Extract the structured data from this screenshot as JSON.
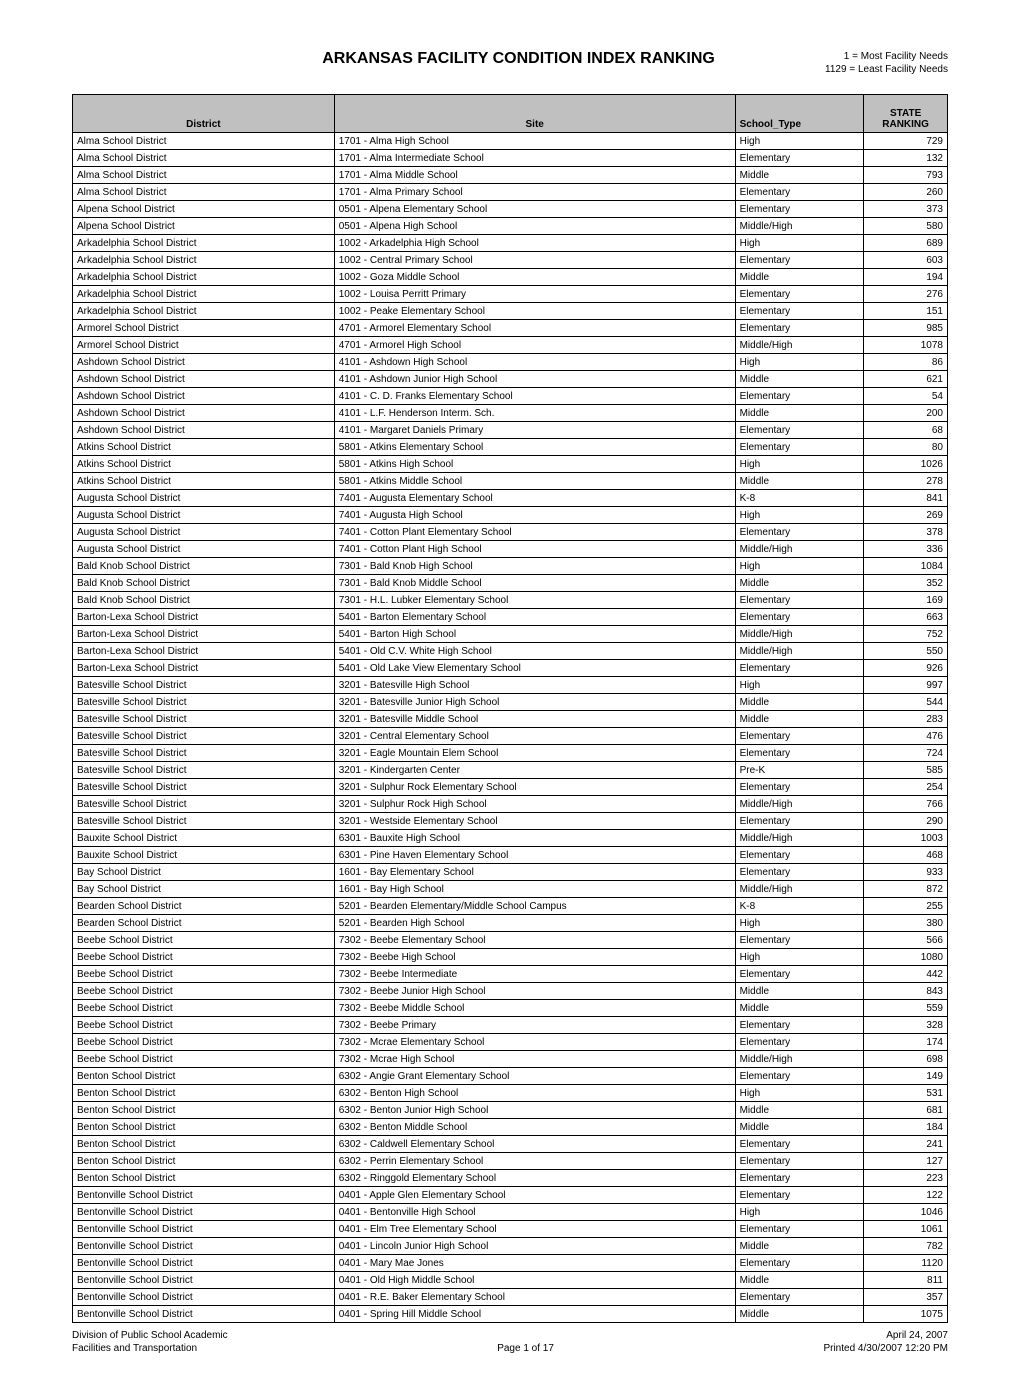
{
  "title": "ARKANSAS FACILITY CONDITION INDEX RANKING",
  "legend": {
    "line1": "1 = Most Facility Needs",
    "line2": "1129 = Least Facility Needs"
  },
  "columns": {
    "district": "District",
    "site": "Site",
    "type": "School_Type",
    "rank": "STATE RANKING"
  },
  "rows": [
    [
      "Alma School District",
      "1701 - Alma High School",
      "High",
      "729"
    ],
    [
      "Alma School District",
      "1701 - Alma Intermediate School",
      "Elementary",
      "132"
    ],
    [
      "Alma School District",
      "1701 - Alma Middle School",
      "Middle",
      "793"
    ],
    [
      "Alma School District",
      "1701 - Alma Primary School",
      "Elementary",
      "260"
    ],
    [
      "Alpena School District",
      "0501 - Alpena Elementary School",
      "Elementary",
      "373"
    ],
    [
      "Alpena School District",
      "0501 - Alpena High School",
      "Middle/High",
      "580"
    ],
    [
      "Arkadelphia School District",
      "1002 - Arkadelphia High School",
      "High",
      "689"
    ],
    [
      "Arkadelphia School District",
      "1002 - Central Primary School",
      "Elementary",
      "603"
    ],
    [
      "Arkadelphia School District",
      "1002 - Goza Middle School",
      "Middle",
      "194"
    ],
    [
      "Arkadelphia School District",
      "1002 - Louisa Perritt Primary",
      "Elementary",
      "276"
    ],
    [
      "Arkadelphia School District",
      "1002 - Peake Elementary School",
      "Elementary",
      "151"
    ],
    [
      "Armorel School District",
      "4701 - Armorel Elementary School",
      "Elementary",
      "985"
    ],
    [
      "Armorel School District",
      "4701 - Armorel High School",
      "Middle/High",
      "1078"
    ],
    [
      "Ashdown School District",
      "4101 - Ashdown High School",
      "High",
      "86"
    ],
    [
      "Ashdown School District",
      "4101 - Ashdown Junior High School",
      "Middle",
      "621"
    ],
    [
      "Ashdown School District",
      "4101 - C. D. Franks Elementary School",
      "Elementary",
      "54"
    ],
    [
      "Ashdown School District",
      "4101 - L.F. Henderson Interm. Sch.",
      "Middle",
      "200"
    ],
    [
      "Ashdown School District",
      "4101 - Margaret Daniels Primary",
      "Elementary",
      "68"
    ],
    [
      "Atkins School District",
      "5801 - Atkins Elementary School",
      "Elementary",
      "80"
    ],
    [
      "Atkins School District",
      "5801 - Atkins High School",
      "High",
      "1026"
    ],
    [
      "Atkins School District",
      "5801 - Atkins Middle School",
      "Middle",
      "278"
    ],
    [
      "Augusta School District",
      "7401 - Augusta Elementary School",
      "K-8",
      "841"
    ],
    [
      "Augusta School District",
      "7401 - Augusta High School",
      "High",
      "269"
    ],
    [
      "Augusta School District",
      "7401 - Cotton Plant Elementary School",
      "Elementary",
      "378"
    ],
    [
      "Augusta School District",
      "7401 - Cotton Plant High School",
      "Middle/High",
      "336"
    ],
    [
      "Bald Knob School District",
      "7301 - Bald Knob High School",
      "High",
      "1084"
    ],
    [
      "Bald Knob School District",
      "7301 - Bald Knob Middle School",
      "Middle",
      "352"
    ],
    [
      "Bald Knob School District",
      "7301 - H.L. Lubker Elementary School",
      "Elementary",
      "169"
    ],
    [
      "Barton-Lexa School District",
      "5401 - Barton Elementary School",
      "Elementary",
      "663"
    ],
    [
      "Barton-Lexa School District",
      "5401 - Barton High School",
      "Middle/High",
      "752"
    ],
    [
      "Barton-Lexa School District",
      "5401 - Old C.V. White High School",
      "Middle/High",
      "550"
    ],
    [
      "Barton-Lexa School District",
      "5401 - Old Lake View Elementary School",
      "Elementary",
      "926"
    ],
    [
      "Batesville School District",
      "3201 - Batesville High School",
      "High",
      "997"
    ],
    [
      "Batesville School District",
      "3201 - Batesville Junior High School",
      "Middle",
      "544"
    ],
    [
      "Batesville School District",
      "3201 - Batesville Middle School",
      "Middle",
      "283"
    ],
    [
      "Batesville School District",
      "3201 - Central Elementary School",
      "Elementary",
      "476"
    ],
    [
      "Batesville School District",
      "3201 - Eagle Mountain Elem School",
      "Elementary",
      "724"
    ],
    [
      "Batesville School District",
      "3201 - Kindergarten Center",
      "Pre-K",
      "585"
    ],
    [
      "Batesville School District",
      "3201 - Sulphur Rock Elementary School",
      "Elementary",
      "254"
    ],
    [
      "Batesville School District",
      "3201 - Sulphur Rock High School",
      "Middle/High",
      "766"
    ],
    [
      "Batesville School District",
      "3201 - Westside Elementary School",
      "Elementary",
      "290"
    ],
    [
      "Bauxite School District",
      "6301 - Bauxite High School",
      "Middle/High",
      "1003"
    ],
    [
      "Bauxite School District",
      "6301 - Pine Haven Elementary School",
      "Elementary",
      "468"
    ],
    [
      "Bay School District",
      "1601 - Bay Elementary School",
      "Elementary",
      "933"
    ],
    [
      "Bay School District",
      "1601 - Bay High School",
      "Middle/High",
      "872"
    ],
    [
      "Bearden School District",
      "5201 - Bearden Elementary/Middle School Campus",
      "K-8",
      "255"
    ],
    [
      "Bearden School District",
      "5201 - Bearden High School",
      "High",
      "380"
    ],
    [
      "Beebe School District",
      "7302 - Beebe Elementary School",
      "Elementary",
      "566"
    ],
    [
      "Beebe School District",
      "7302 - Beebe High School",
      "High",
      "1080"
    ],
    [
      "Beebe School District",
      "7302 - Beebe Intermediate",
      "Elementary",
      "442"
    ],
    [
      "Beebe School District",
      "7302 - Beebe Junior High School",
      "Middle",
      "843"
    ],
    [
      "Beebe School District",
      "7302 - Beebe Middle School",
      "Middle",
      "559"
    ],
    [
      "Beebe School District",
      "7302 - Beebe Primary",
      "Elementary",
      "328"
    ],
    [
      "Beebe School District",
      "7302 - Mcrae Elementary School",
      "Elementary",
      "174"
    ],
    [
      "Beebe School District",
      "7302 - Mcrae High School",
      "Middle/High",
      "698"
    ],
    [
      "Benton School District",
      "6302 - Angie Grant Elementary School",
      "Elementary",
      "149"
    ],
    [
      "Benton School District",
      "6302 - Benton High School",
      "High",
      "531"
    ],
    [
      "Benton School District",
      "6302 - Benton Junior High School",
      "Middle",
      "681"
    ],
    [
      "Benton School District",
      "6302 - Benton Middle School",
      "Middle",
      "184"
    ],
    [
      "Benton School District",
      "6302 - Caldwell Elementary School",
      "Elementary",
      "241"
    ],
    [
      "Benton School District",
      "6302 - Perrin Elementary School",
      "Elementary",
      "127"
    ],
    [
      "Benton School District",
      "6302 - Ringgold Elementary School",
      "Elementary",
      "223"
    ],
    [
      "Bentonville School District",
      "0401 - Apple Glen Elementary School",
      "Elementary",
      "122"
    ],
    [
      "Bentonville School District",
      "0401 - Bentonville High School",
      "High",
      "1046"
    ],
    [
      "Bentonville School District",
      "0401 - Elm Tree Elementary School",
      "Elementary",
      "1061"
    ],
    [
      "Bentonville School District",
      "0401 - Lincoln Junior High School",
      "Middle",
      "782"
    ],
    [
      "Bentonville School District",
      "0401 - Mary Mae Jones",
      "Elementary",
      "1120"
    ],
    [
      "Bentonville School District",
      "0401 - Old High Middle School",
      "Middle",
      "811"
    ],
    [
      "Bentonville School District",
      "0401 - R.E. Baker Elementary School",
      "Elementary",
      "357"
    ],
    [
      "Bentonville School District",
      "0401 - Spring Hill Middle School",
      "Middle",
      "1075"
    ]
  ],
  "footer": {
    "left1": "Division of Public School Academic",
    "left2": "Facilities and Transportation",
    "center": "Page 1 of 17",
    "right1": "April 24, 2007",
    "right2": "Printed 4/30/2007 12:20 PM"
  }
}
